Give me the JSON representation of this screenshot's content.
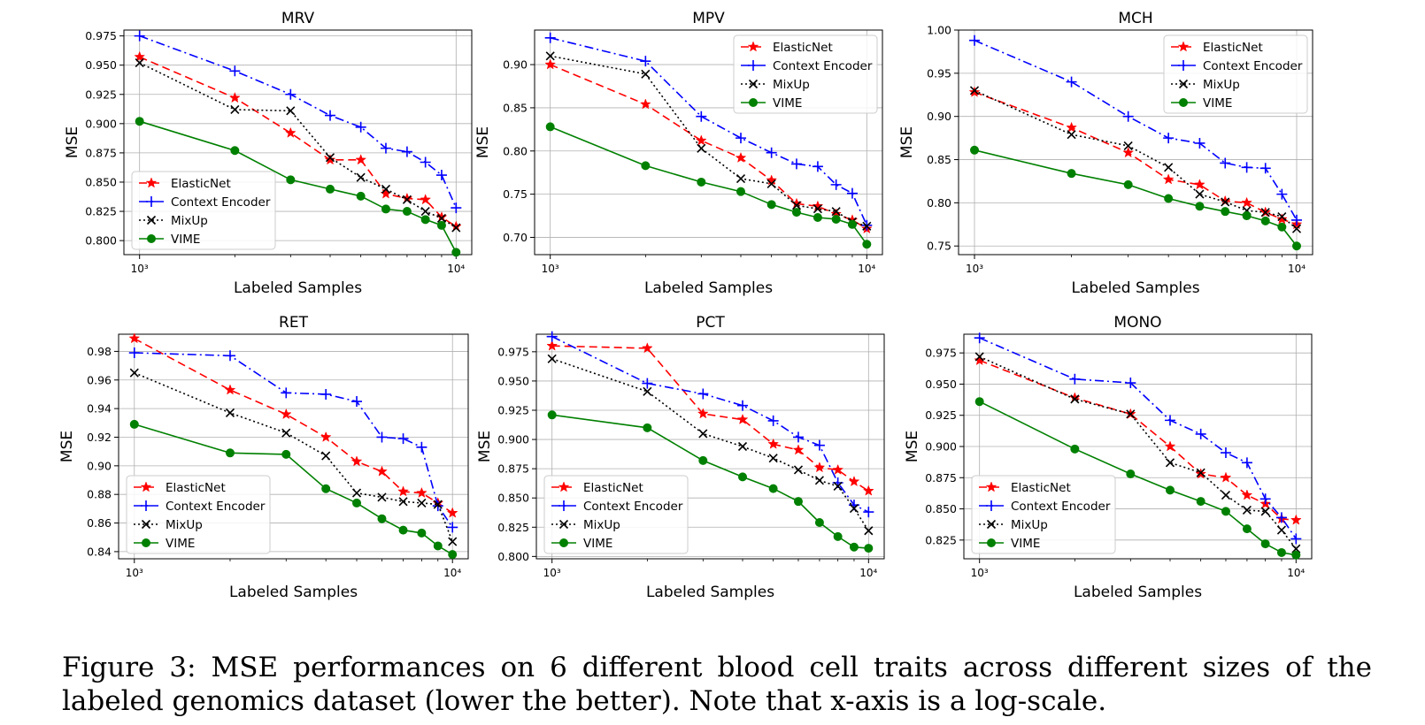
{
  "legend_labels": [
    "ElasticNet",
    "Context Encoder",
    "MixUp",
    "VIME"
  ],
  "series_colors": {
    "ElasticNet": "#ff0000",
    "Context Encoder": "#0000ff",
    "MixUp": "#000000",
    "VIME": "#008000"
  },
  "caption": "Figure 3: MSE performances on 6 different blood cell traits across different sizes of the labeled genomics dataset (lower the better). Note that x-axis is a log-scale.",
  "chart_data": [
    {
      "type": "line",
      "title": "MRV",
      "xlabel": "Labeled Samples",
      "ylabel": "MSE",
      "xscale": "log",
      "xlim": [
        1000,
        10000
      ],
      "xticks": [
        "10³",
        "10⁴"
      ],
      "ylim": [
        0.788,
        0.98
      ],
      "yticks": [
        "0.800",
        "0.825",
        "0.850",
        "0.875",
        "0.900",
        "0.925",
        "0.950",
        "0.975"
      ],
      "grid": true,
      "legend": "lower-left",
      "x": [
        1000,
        2000,
        3000,
        4000,
        5000,
        6000,
        7000,
        8000,
        9000,
        10000
      ],
      "series": [
        {
          "name": "ElasticNet",
          "values": [
            0.957,
            0.922,
            0.892,
            0.869,
            0.869,
            0.84,
            0.836,
            0.835,
            0.82,
            0.812
          ]
        },
        {
          "name": "Context Encoder",
          "values": [
            0.975,
            0.945,
            0.925,
            0.907,
            0.897,
            0.879,
            0.876,
            0.867,
            0.856,
            0.828
          ]
        },
        {
          "name": "MixUp",
          "values": [
            0.952,
            0.912,
            0.911,
            0.871,
            0.854,
            0.844,
            0.835,
            0.825,
            0.819,
            0.811
          ]
        },
        {
          "name": "VIME",
          "values": [
            0.902,
            0.877,
            0.852,
            0.844,
            0.838,
            0.827,
            0.825,
            0.818,
            0.813,
            0.79
          ]
        }
      ]
    },
    {
      "type": "line",
      "title": "MPV",
      "xlabel": "Labeled Samples",
      "ylabel": "MSE",
      "xscale": "log",
      "xlim": [
        1000,
        10000
      ],
      "xticks": [
        "10³",
        "10⁴"
      ],
      "ylim": [
        0.68,
        0.94
      ],
      "yticks": [
        "0.70",
        "0.75",
        "0.80",
        "0.85",
        "0.90"
      ],
      "grid": true,
      "legend": "upper-right",
      "x": [
        1000,
        2000,
        3000,
        4000,
        5000,
        6000,
        7000,
        8000,
        9000,
        10000
      ],
      "series": [
        {
          "name": "ElasticNet",
          "values": [
            0.9,
            0.854,
            0.812,
            0.792,
            0.766,
            0.739,
            0.736,
            0.727,
            0.72,
            0.71
          ]
        },
        {
          "name": "Context Encoder",
          "values": [
            0.931,
            0.904,
            0.84,
            0.815,
            0.798,
            0.785,
            0.782,
            0.761,
            0.751,
            0.714
          ]
        },
        {
          "name": "MixUp",
          "values": [
            0.91,
            0.889,
            0.803,
            0.768,
            0.762,
            0.737,
            0.733,
            0.73,
            0.718,
            0.713
          ]
        },
        {
          "name": "VIME",
          "values": [
            0.828,
            0.783,
            0.764,
            0.753,
            0.738,
            0.729,
            0.723,
            0.721,
            0.715,
            0.692
          ]
        }
      ]
    },
    {
      "type": "line",
      "title": "MCH",
      "xlabel": "Labeled Samples",
      "ylabel": "MSE",
      "xscale": "log",
      "xlim": [
        1000,
        10000
      ],
      "xticks": [
        "10³",
        "10⁴"
      ],
      "ylim": [
        0.74,
        1.0
      ],
      "yticks": [
        "0.75",
        "0.80",
        "0.85",
        "0.90",
        "0.95",
        "1.00"
      ],
      "grid": true,
      "legend": "upper-right",
      "x": [
        1000,
        2000,
        3000,
        4000,
        5000,
        6000,
        7000,
        8000,
        9000,
        10000
      ],
      "series": [
        {
          "name": "ElasticNet",
          "values": [
            0.928,
            0.887,
            0.858,
            0.827,
            0.821,
            0.802,
            0.8,
            0.789,
            0.781,
            0.775
          ]
        },
        {
          "name": "Context Encoder",
          "values": [
            0.988,
            0.94,
            0.9,
            0.875,
            0.869,
            0.846,
            0.841,
            0.84,
            0.81,
            0.78
          ]
        },
        {
          "name": "MixUp",
          "values": [
            0.93,
            0.879,
            0.866,
            0.841,
            0.81,
            0.801,
            0.791,
            0.789,
            0.784,
            0.77
          ]
        },
        {
          "name": "VIME",
          "values": [
            0.861,
            0.834,
            0.821,
            0.805,
            0.796,
            0.79,
            0.785,
            0.779,
            0.772,
            0.75
          ]
        }
      ]
    },
    {
      "type": "line",
      "title": "RET",
      "xlabel": "Labeled Samples",
      "ylabel": "MSE",
      "xscale": "log",
      "xlim": [
        1000,
        10000
      ],
      "xticks": [
        "10³",
        "10⁴"
      ],
      "ylim": [
        0.835,
        0.992
      ],
      "yticks": [
        "0.84",
        "0.86",
        "0.88",
        "0.90",
        "0.92",
        "0.94",
        "0.96",
        "0.98"
      ],
      "grid": true,
      "legend": "lower-left",
      "x": [
        1000,
        2000,
        3000,
        4000,
        5000,
        6000,
        7000,
        8000,
        9000,
        10000
      ],
      "series": [
        {
          "name": "ElasticNet",
          "values": [
            0.989,
            0.953,
            0.936,
            0.92,
            0.903,
            0.896,
            0.882,
            0.881,
            0.874,
            0.867
          ]
        },
        {
          "name": "Context Encoder",
          "values": [
            0.979,
            0.977,
            0.951,
            0.95,
            0.945,
            0.92,
            0.919,
            0.913,
            0.872,
            0.857
          ]
        },
        {
          "name": "MixUp",
          "values": [
            0.965,
            0.937,
            0.923,
            0.907,
            0.881,
            0.878,
            0.875,
            0.874,
            0.873,
            0.847
          ]
        },
        {
          "name": "VIME",
          "values": [
            0.929,
            0.909,
            0.908,
            0.884,
            0.874,
            0.863,
            0.855,
            0.853,
            0.844,
            0.838
          ]
        }
      ]
    },
    {
      "type": "line",
      "title": "PCT",
      "xlabel": "Labeled Samples",
      "ylabel": "MSE",
      "xscale": "log",
      "xlim": [
        1000,
        10000
      ],
      "xticks": [
        "10³",
        "10⁴"
      ],
      "ylim": [
        0.798,
        0.99
      ],
      "yticks": [
        "0.800",
        "0.825",
        "0.850",
        "0.875",
        "0.900",
        "0.925",
        "0.950",
        "0.975"
      ],
      "grid": true,
      "legend": "lower-left",
      "x": [
        1000,
        2000,
        3000,
        4000,
        5000,
        6000,
        7000,
        8000,
        9000,
        10000
      ],
      "series": [
        {
          "name": "ElasticNet",
          "values": [
            0.98,
            0.978,
            0.922,
            0.917,
            0.896,
            0.891,
            0.876,
            0.874,
            0.864,
            0.856
          ]
        },
        {
          "name": "Context Encoder",
          "values": [
            0.988,
            0.948,
            0.939,
            0.929,
            0.916,
            0.902,
            0.895,
            0.863,
            0.844,
            0.838
          ]
        },
        {
          "name": "MixUp",
          "values": [
            0.969,
            0.941,
            0.905,
            0.894,
            0.884,
            0.874,
            0.865,
            0.86,
            0.841,
            0.822
          ]
        },
        {
          "name": "VIME",
          "values": [
            0.921,
            0.91,
            0.882,
            0.868,
            0.858,
            0.847,
            0.829,
            0.817,
            0.808,
            0.807
          ]
        }
      ]
    },
    {
      "type": "line",
      "title": "MONO",
      "xlabel": "Labeled Samples",
      "ylabel": "MSE",
      "xscale": "log",
      "xlim": [
        1000,
        10000
      ],
      "xticks": [
        "10³",
        "10⁴"
      ],
      "ylim": [
        0.81,
        0.99
      ],
      "yticks": [
        "0.825",
        "0.850",
        "0.875",
        "0.900",
        "0.925",
        "0.950",
        "0.975"
      ],
      "grid": true,
      "legend": "lower-left",
      "x": [
        1000,
        2000,
        3000,
        4000,
        5000,
        6000,
        7000,
        8000,
        9000,
        10000
      ],
      "series": [
        {
          "name": "ElasticNet",
          "values": [
            0.969,
            0.939,
            0.926,
            0.9,
            0.878,
            0.875,
            0.861,
            0.854,
            0.842,
            0.841
          ]
        },
        {
          "name": "Context Encoder",
          "values": [
            0.987,
            0.954,
            0.951,
            0.921,
            0.91,
            0.895,
            0.887,
            0.858,
            0.843,
            0.826
          ]
        },
        {
          "name": "MixUp",
          "values": [
            0.972,
            0.938,
            0.926,
            0.887,
            0.879,
            0.861,
            0.849,
            0.848,
            0.833,
            0.818
          ]
        },
        {
          "name": "VIME",
          "values": [
            0.936,
            0.898,
            0.878,
            0.865,
            0.856,
            0.848,
            0.834,
            0.822,
            0.815,
            0.813
          ]
        }
      ]
    }
  ]
}
